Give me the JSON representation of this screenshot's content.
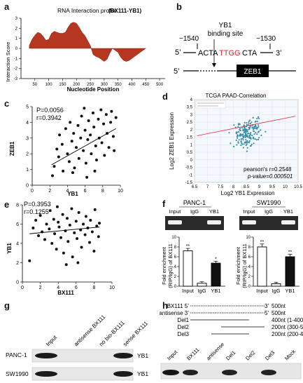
{
  "panel_labels": {
    "a": "a",
    "b": "b",
    "c": "c",
    "d": "d",
    "e": "e",
    "f": "f",
    "g": "g",
    "h": "h"
  },
  "panel_a": {
    "title": "RNA Interaction profile",
    "subtitle": "(BX111-YB1)",
    "ylabel": "Interaction Score",
    "xlabel": "Nucleotide Position",
    "xticks": [
      "50",
      "100",
      "150",
      "200",
      "250",
      "300",
      "350",
      "400",
      "450",
      "500"
    ],
    "yticks": [
      "3",
      "2",
      "1",
      "0",
      "-1",
      "-2",
      "-3"
    ]
  },
  "panel_b": {
    "left_pos": "−1540",
    "right_pos": "−1530",
    "binding_label_1": "YB1",
    "binding_label_2": "binding site",
    "five_prime": "5’",
    "three_prime": "3’",
    "seq_prefix": "ACTA",
    "seq_site": "TTGG",
    "seq_suffix": "CTA",
    "gene_five_prime": "5’",
    "gene": "ZEB1"
  },
  "panel_c": {
    "p_text": "P=0.0056",
    "r_text": "r=0.3942",
    "xlabel": "YB1",
    "ylabel": "ZEB1",
    "xticks": [
      "0",
      "2",
      "4",
      "6",
      "8",
      "10"
    ],
    "yticks": [
      "0",
      "1",
      "2",
      "3",
      "4",
      "5"
    ]
  },
  "panel_d": {
    "title": "TCGA PAAD-Correlation",
    "xlabel": "Log2 YB1 Expression",
    "ylabel": "Log2 ZEB1 Expression",
    "pearson": "pearson's r=0.2548",
    "pvalue": "p-value=0.000501",
    "xticks": [
      "6.5",
      "7",
      "7.5",
      "8",
      "8.5",
      "9",
      "9.5",
      "10",
      "10.5"
    ],
    "yticks": [
      "4",
      "3.5",
      "3",
      "2.5",
      "2",
      "1.5",
      "1",
      "0.5",
      "0",
      "-0.5",
      "-1",
      "-1.5"
    ]
  },
  "panel_e": {
    "p_text": "P=0.3953",
    "r_text": "r=0.1255",
    "xlabel": "BX111",
    "ylabel": "YB1",
    "xticks": [
      "0",
      "2",
      "4",
      "6",
      "8",
      "10"
    ],
    "yticks": [
      "0",
      "2",
      "4",
      "6",
      "8"
    ]
  },
  "panel_f": {
    "left_title": "PANC-1",
    "right_title": "SW1990",
    "lanes": [
      "Input",
      "IgG",
      "YB1"
    ],
    "ylabel_1": "Fold enrichment",
    "ylabel_2": "(RIP/IgG) of BX111",
    "left_yticks": [
      "10",
      "8",
      "6",
      "4",
      "2",
      "0"
    ],
    "right_yticks": [
      "10",
      "8",
      "6",
      "4",
      "2",
      "0"
    ],
    "left_sig": [
      "**",
      "",
      "*"
    ],
    "right_sig": [
      "**",
      "",
      "**"
    ]
  },
  "panel_g": {
    "lanes": [
      "Input",
      "antisense BX111",
      "no bio-BX111",
      "sense BX111"
    ],
    "rows": [
      "PANC-1",
      "SW1990"
    ],
    "band_label": "YB1"
  },
  "panel_h": {
    "constructs": [
      {
        "name": "BX111 5’",
        "end": "3’",
        "size": "500nt"
      },
      {
        "name": "antisense 3’",
        "end": "5’",
        "size": "500nt"
      },
      {
        "name": "Del1",
        "end": "",
        "size": "400nt (1-400)"
      },
      {
        "name": "Del2",
        "end": "",
        "size": "200nt (300-500)"
      },
      {
        "name": "Del3",
        "end": "",
        "size": "200nt (200-400)"
      }
    ],
    "lanes": [
      "Input",
      "BX111",
      "antisense",
      "Del1",
      "Del2",
      "Del3",
      "Mock"
    ]
  },
  "chart_data": [
    {
      "type": "area",
      "title": "RNA Interaction profile (BX111-YB1)",
      "xlabel": "Nucleotide Position",
      "ylabel": "Interaction Score",
      "xlim": [
        0,
        520
      ],
      "ylim": [
        -3,
        3
      ],
      "x": [
        30,
        40,
        50,
        60,
        70,
        80,
        90,
        100,
        110,
        120,
        130,
        140,
        150,
        160,
        170,
        180,
        190,
        200,
        210,
        220,
        230,
        240,
        250,
        260,
        270,
        280,
        290,
        300,
        310,
        320,
        330,
        340,
        350,
        360,
        370,
        380,
        390,
        400,
        410,
        420,
        430,
        440,
        450
      ],
      "y": [
        0.3,
        0.9,
        1.3,
        1.6,
        1.5,
        1.2,
        0.8,
        0.9,
        1.5,
        1.7,
        1.6,
        1.5,
        1.5,
        1.6,
        2.1,
        2.5,
        2.6,
        2.5,
        2.1,
        1.6,
        1.3,
        0.8,
        0.3,
        -0.6,
        -0.8,
        -0.9,
        -1.1,
        -1.3,
        -1.1,
        -0.5,
        0.0,
        -0.2,
        -0.4,
        -0.9,
        -1.2,
        -1.3,
        -1.2,
        -1.0,
        -0.8,
        -0.6,
        -0.4,
        -0.2,
        0.0
      ]
    },
    {
      "type": "scatter",
      "xlabel": "YB1",
      "ylabel": "ZEB1",
      "xlim": [
        0,
        10
      ],
      "ylim": [
        0,
        5
      ],
      "annotations": [
        "P=0.0056",
        "r=0.3942"
      ],
      "points": [
        [
          2.3,
          0.6
        ],
        [
          2.5,
          1.2
        ],
        [
          2.8,
          2.3
        ],
        [
          3.0,
          1.8
        ],
        [
          3.1,
          3.2
        ],
        [
          3.4,
          2.6
        ],
        [
          3.5,
          0.9
        ],
        [
          3.8,
          3.6
        ],
        [
          4.0,
          2.0
        ],
        [
          4.2,
          1.5
        ],
        [
          4.3,
          4.0
        ],
        [
          4.5,
          2.8
        ],
        [
          4.7,
          3.3
        ],
        [
          4.8,
          1.1
        ],
        [
          5.0,
          2.4
        ],
        [
          5.2,
          3.8
        ],
        [
          5.3,
          1.7
        ],
        [
          5.5,
          3.0
        ],
        [
          5.6,
          4.4
        ],
        [
          5.8,
          2.2
        ],
        [
          6.0,
          3.5
        ],
        [
          6.1,
          1.4
        ],
        [
          6.3,
          2.9
        ],
        [
          6.4,
          4.1
        ],
        [
          6.6,
          3.2
        ],
        [
          6.7,
          2.0
        ],
        [
          6.9,
          4.6
        ],
        [
          7.0,
          3.7
        ],
        [
          7.2,
          2.5
        ],
        [
          7.3,
          1.6
        ],
        [
          7.5,
          4.2
        ],
        [
          7.6,
          3.0
        ],
        [
          7.8,
          4.8
        ],
        [
          7.9,
          2.7
        ],
        [
          8.1,
          3.9
        ],
        [
          8.2,
          1.9
        ],
        [
          8.4,
          4.5
        ],
        [
          8.5,
          3.3
        ],
        [
          8.7,
          2.4
        ],
        [
          8.9,
          4.0
        ],
        [
          9.0,
          4.7
        ],
        [
          9.2,
          3.1
        ],
        [
          9.3,
          2.2
        ],
        [
          9.5,
          4.3
        ],
        [
          6.2,
          0.5
        ],
        [
          4.6,
          0.8
        ],
        [
          5.9,
          4.9
        ],
        [
          7.1,
          0.9
        ]
      ],
      "trend": [
        [
          2.2,
          1.3
        ],
        [
          9.5,
          3.6
        ]
      ]
    },
    {
      "type": "scatter",
      "title": "TCGA PAAD-Correlation",
      "xlabel": "Log2 YB1 Expression",
      "ylabel": "Log2 ZEB1 Expression",
      "xlim": [
        6.5,
        10.5
      ],
      "ylim": [
        -1.5,
        4
      ],
      "annotations": [
        "pearson's r=0.2548",
        "p-value=0.000501"
      ],
      "trend": [
        [
          6.6,
          1.6
        ],
        [
          10.4,
          2.9
        ]
      ]
    },
    {
      "type": "scatter",
      "xlabel": "BX111",
      "ylabel": "YB1",
      "xlim": [
        0,
        10
      ],
      "ylim": [
        0,
        8
      ],
      "annotations": [
        "P=0.3953",
        "r=0.1255"
      ],
      "points": [
        [
          0.8,
          2.2
        ],
        [
          1.2,
          5.6
        ],
        [
          1.5,
          6.4
        ],
        [
          1.8,
          4.8
        ],
        [
          2.0,
          6.9
        ],
        [
          2.2,
          5.2
        ],
        [
          2.5,
          4.4
        ],
        [
          2.7,
          6.0
        ],
        [
          3.0,
          5.5
        ],
        [
          3.1,
          7.4
        ],
        [
          3.3,
          4.0
        ],
        [
          3.5,
          6.5
        ],
        [
          3.6,
          5.0
        ],
        [
          3.8,
          3.4
        ],
        [
          4.0,
          6.2
        ],
        [
          4.1,
          5.7
        ],
        [
          4.3,
          4.6
        ],
        [
          4.5,
          7.0
        ],
        [
          4.6,
          3.0
        ],
        [
          4.8,
          5.3
        ],
        [
          5.0,
          6.6
        ],
        [
          5.1,
          4.2
        ],
        [
          5.3,
          5.9
        ],
        [
          5.5,
          7.6
        ],
        [
          5.6,
          2.6
        ],
        [
          5.8,
          5.1
        ],
        [
          6.0,
          6.3
        ],
        [
          6.1,
          4.5
        ],
        [
          6.3,
          7.2
        ],
        [
          6.5,
          5.4
        ],
        [
          6.6,
          3.6
        ],
        [
          6.8,
          6.0
        ],
        [
          7.0,
          4.9
        ],
        [
          7.1,
          6.8
        ],
        [
          7.3,
          5.6
        ],
        [
          7.5,
          4.1
        ],
        [
          7.6,
          6.4
        ],
        [
          7.8,
          5.2
        ],
        [
          8.0,
          3.2
        ],
        [
          8.1,
          7.5
        ],
        [
          8.3,
          5.8
        ],
        [
          8.5,
          4.7
        ],
        [
          8.6,
          6.1
        ],
        [
          4.9,
          1.8
        ],
        [
          3.9,
          7.8
        ],
        [
          6.2,
          2.0
        ]
      ],
      "trend": [
        [
          0.8,
          5.0
        ],
        [
          8.6,
          5.7
        ]
      ]
    },
    {
      "type": "bar",
      "title": "PANC-1",
      "categories": [
        "Input",
        "IgG",
        "YB1"
      ],
      "values": [
        7.2,
        0.6,
        4.7
      ],
      "errors": [
        0.5,
        0.3,
        0.4
      ],
      "ylabel": "Fold enrichment (RIP/IgG) of BX111",
      "ylim": [
        0,
        10
      ]
    },
    {
      "type": "bar",
      "title": "SW1990",
      "categories": [
        "Input",
        "IgG",
        "YB1"
      ],
      "values": [
        8.0,
        0.5,
        6.0
      ],
      "errors": [
        0.6,
        0.3,
        0.5
      ],
      "ylabel": "Fold enrichment (RIP/IgG) of BX111",
      "ylim": [
        0,
        10
      ]
    }
  ]
}
